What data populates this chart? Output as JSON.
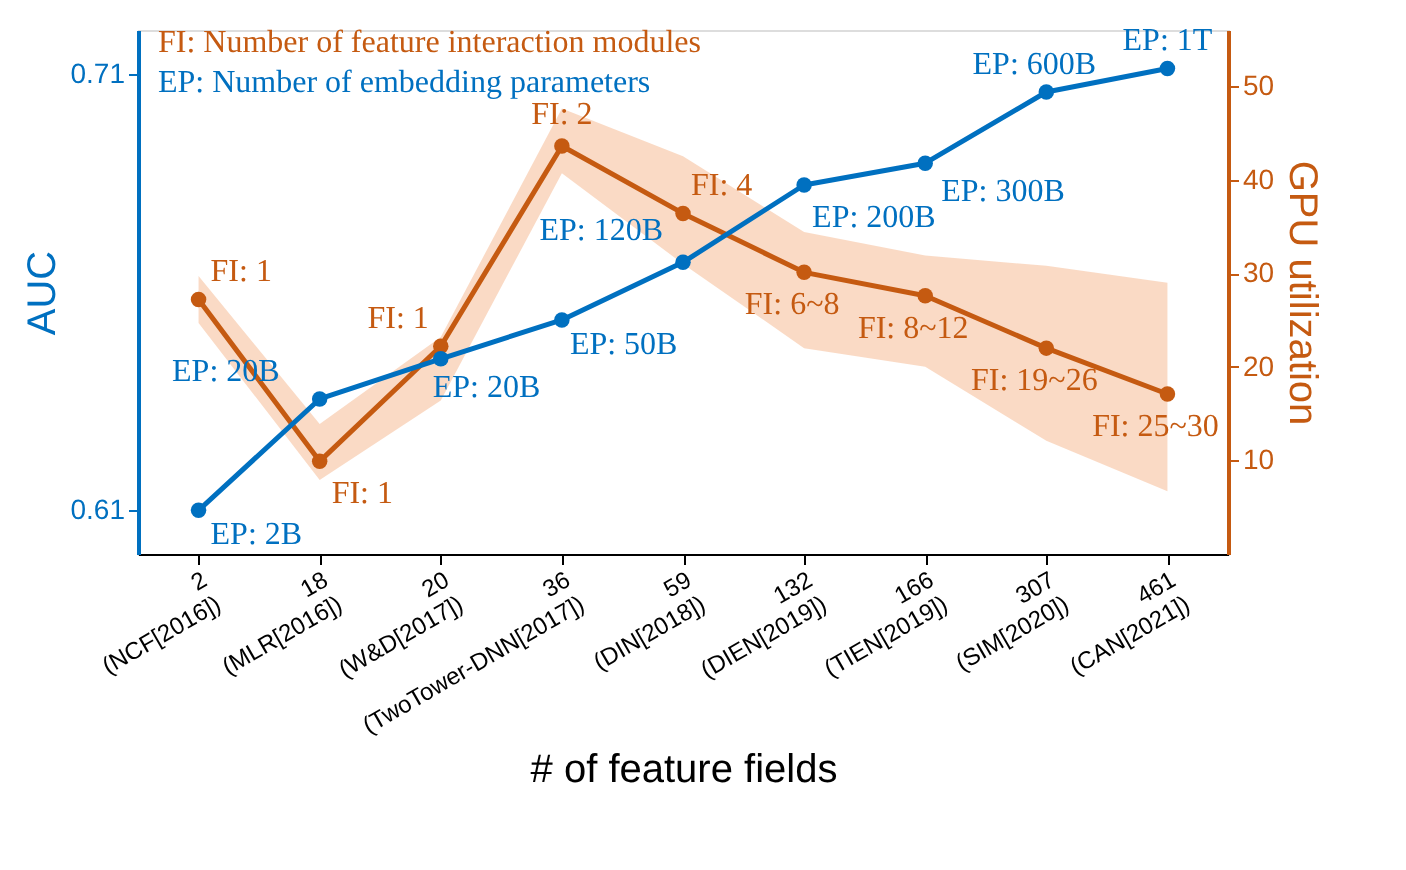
{
  "chart_data": {
    "type": "line",
    "xlabel": "# of feature fields",
    "ylabel": "AUC",
    "y2label": "GPU utilization",
    "categories": [
      "2\n(NCF[2016])",
      "18\n(MLR[2016])",
      "20\n(W&D[2017])",
      "36\n(TwoTower-DNN[2017])",
      "59\n(DIN[2018])",
      "132\n(DIEN[2019])",
      "166\n(TIEN[2019])",
      "307\n(SIM[2020])",
      "461\n(CAN[2021])"
    ],
    "series": [
      {
        "name": "EP: Number of embedding parameters",
        "color": "#0070c0",
        "values": [
          0.61,
          0.6355,
          0.6447,
          0.6536,
          0.6668,
          0.6845,
          0.6895,
          0.7058,
          0.7112
        ]
      },
      {
        "name": "FI: Number of feature interaction modules",
        "color": "#c55a11",
        "axis": "y2",
        "values": [
          27.2,
          9.9,
          22.2,
          43.6,
          36.4,
          30.1,
          27.6,
          22.0,
          17.1
        ],
        "lower": [
          24.7,
          7.9,
          16.4,
          40.7,
          31.0,
          22.0,
          20.0,
          12.1,
          6.7
        ],
        "upper": [
          29.7,
          13.9,
          23.2,
          47.6,
          42.5,
          34.4,
          31.9,
          30.8,
          29.0
        ]
      }
    ],
    "annotations": [
      {
        "text": "EP: 2B",
        "x": "2\n(NCF[2016])",
        "y": 0.61
      },
      {
        "text": "EP: 20B",
        "x": "18\n(MLR[2016])",
        "y": 0.6355
      },
      {
        "text": "EP: 20B",
        "x": "20\n(W&D[2017])",
        "y": 0.6447
      },
      {
        "text": "EP: 50B",
        "x": "36\n(TwoTower-DNN[2017])",
        "y": 0.6536
      },
      {
        "text": "EP: 120B",
        "x": "59\n(DIN[2018])",
        "y": 0.6668
      },
      {
        "text": "EP: 200B",
        "x": "132\n(DIEN[2019])",
        "y": 0.6845
      },
      {
        "text": "EP: 300B",
        "x": "166\n(TIEN[2019])",
        "y": 0.6895
      },
      {
        "text": "EP: 600B",
        "x": "307\n(SIM[2020])",
        "y": 0.7058
      },
      {
        "text": "EP: 1T",
        "x": "461\n(CAN[2021])",
        "y": 0.7112
      },
      "FI: 1",
      "FI: 1",
      "FI: 1",
      "FI: 2",
      "FI: 4",
      "FI: 6~8",
      "FI: 8~12",
      "FI: 19~26",
      "FI: 25~30"
    ],
    "ylim": [
      0.6,
      0.72
    ],
    "yticks": [
      0.61,
      0.71
    ],
    "y2lim": [
      0,
      56
    ],
    "y2ticks": [
      10,
      20,
      30,
      40,
      50
    ],
    "marker": "circle",
    "grid": false,
    "legend": "top left"
  }
}
